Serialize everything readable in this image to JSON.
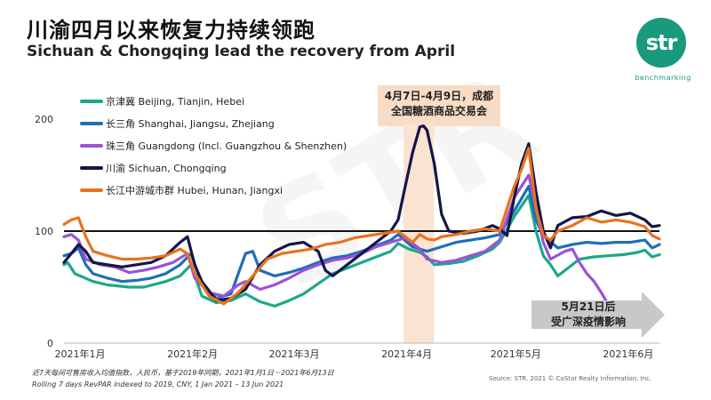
{
  "title_cn": "川渝四月以来恢复力持续领跑",
  "title_en": "Sichuan & Chongqing lead the recovery from April",
  "logo": {
    "text": "str",
    "subtext": "benchmarking",
    "color": "#1a9a7c"
  },
  "watermark": "STR",
  "annotation_canton_fair": "4月7日-4月9日，成都\n全国糖酒商品交易会",
  "annotation_outbreak": "5月21日后\n受广深疫情影响",
  "footnote_cn": "近7天每间可售房收入均值指数，人民币，基于2019年同期，2021年1月1日－2021年6月13日",
  "footnote_en": "Rolling 7 days RevPAR indexed to 2019, CNY, 1 Jan 2021 – 13 Jun 2021",
  "source": "Source: STR. 2021 © CoStar Realty Information, Inc.",
  "chart_data": {
    "type": "line",
    "title": "川渝四月以来恢复力持续领跑",
    "xlabel": "",
    "ylabel": "",
    "ylim": [
      0,
      210
    ],
    "yticks": [
      0,
      100,
      200
    ],
    "reference_line": 100,
    "x_range_days": [
      0,
      164
    ],
    "xtick_labels": [
      {
        "day": 0,
        "label": "2021年1月"
      },
      {
        "day": 31,
        "label": "2021年2月"
      },
      {
        "day": 59,
        "label": "2021年3月"
      },
      {
        "day": 90,
        "label": "2021年4月"
      },
      {
        "day": 120,
        "label": "2021年5月"
      },
      {
        "day": 151,
        "label": "2021年6月"
      }
    ],
    "highlight": {
      "day_start": 96,
      "day_end": 98.5,
      "label": "4月7日-4月9日，成都全国糖酒商品交易会"
    },
    "series": [
      {
        "name": "京津冀 Beijing, Tianjin, Hebei",
        "color": "#1aa98a",
        "points": [
          [
            0,
            70
          ],
          [
            1,
            72
          ],
          [
            3,
            62
          ],
          [
            8,
            55
          ],
          [
            12,
            52
          ],
          [
            18,
            50
          ],
          [
            22,
            50
          ],
          [
            28,
            55
          ],
          [
            32,
            60
          ],
          [
            35,
            70
          ],
          [
            38,
            42
          ],
          [
            42,
            36
          ],
          [
            46,
            38
          ],
          [
            50,
            44
          ],
          [
            54,
            37
          ],
          [
            58,
            33
          ],
          [
            62,
            38
          ],
          [
            66,
            44
          ],
          [
            70,
            53
          ],
          [
            74,
            62
          ],
          [
            78,
            67
          ],
          [
            82,
            72
          ],
          [
            86,
            77
          ],
          [
            90,
            82
          ],
          [
            92,
            89
          ],
          [
            95,
            84
          ],
          [
            98,
            81
          ],
          [
            100,
            77
          ],
          [
            102,
            70
          ],
          [
            106,
            71
          ],
          [
            110,
            73
          ],
          [
            114,
            78
          ],
          [
            118,
            84
          ],
          [
            120,
            90
          ],
          [
            124,
            113
          ],
          [
            128,
            132
          ],
          [
            130,
            100
          ],
          [
            132,
            78
          ],
          [
            134,
            70
          ],
          [
            136,
            60
          ],
          [
            138,
            65
          ],
          [
            142,
            75
          ],
          [
            146,
            77
          ],
          [
            150,
            78
          ],
          [
            154,
            79
          ],
          [
            158,
            81
          ],
          [
            160,
            83
          ],
          [
            162,
            77
          ],
          [
            164,
            79
          ]
        ]
      },
      {
        "name": "长三角 Shanghai, Jiangsu, Zhejiang",
        "color": "#1f6eb6",
        "points": [
          [
            0,
            78
          ],
          [
            2,
            80
          ],
          [
            4,
            85
          ],
          [
            6,
            70
          ],
          [
            8,
            62
          ],
          [
            12,
            58
          ],
          [
            16,
            55
          ],
          [
            20,
            56
          ],
          [
            24,
            58
          ],
          [
            28,
            62
          ],
          [
            32,
            70
          ],
          [
            35,
            80
          ],
          [
            38,
            52
          ],
          [
            42,
            40
          ],
          [
            46,
            44
          ],
          [
            50,
            80
          ],
          [
            52,
            82
          ],
          [
            54,
            65
          ],
          [
            58,
            60
          ],
          [
            62,
            63
          ],
          [
            66,
            67
          ],
          [
            70,
            72
          ],
          [
            74,
            76
          ],
          [
            78,
            78
          ],
          [
            82,
            82
          ],
          [
            86,
            87
          ],
          [
            90,
            92
          ],
          [
            92,
            97
          ],
          [
            96,
            86
          ],
          [
            100,
            82
          ],
          [
            104,
            86
          ],
          [
            108,
            90
          ],
          [
            112,
            92
          ],
          [
            116,
            94
          ],
          [
            120,
            97
          ],
          [
            124,
            118
          ],
          [
            128,
            140
          ],
          [
            130,
            110
          ],
          [
            132,
            96
          ],
          [
            136,
            85
          ],
          [
            140,
            88
          ],
          [
            144,
            90
          ],
          [
            148,
            89
          ],
          [
            152,
            90
          ],
          [
            156,
            90
          ],
          [
            160,
            92
          ],
          [
            162,
            85
          ],
          [
            164,
            88
          ]
        ]
      },
      {
        "name": "珠三角 Guangdong (Incl. Guangzhou & Shenzhen)",
        "color": "#9b52d8",
        "points": [
          [
            0,
            95
          ],
          [
            2,
            97
          ],
          [
            4,
            92
          ],
          [
            6,
            75
          ],
          [
            10,
            70
          ],
          [
            14,
            68
          ],
          [
            18,
            63
          ],
          [
            22,
            65
          ],
          [
            26,
            68
          ],
          [
            30,
            72
          ],
          [
            34,
            80
          ],
          [
            36,
            58
          ],
          [
            40,
            45
          ],
          [
            44,
            42
          ],
          [
            48,
            52
          ],
          [
            50,
            55
          ],
          [
            54,
            48
          ],
          [
            58,
            52
          ],
          [
            62,
            58
          ],
          [
            66,
            65
          ],
          [
            70,
            70
          ],
          [
            74,
            74
          ],
          [
            78,
            76
          ],
          [
            82,
            80
          ],
          [
            86,
            86
          ],
          [
            90,
            90
          ],
          [
            94,
            94
          ],
          [
            98,
            84
          ],
          [
            100,
            75
          ],
          [
            104,
            72
          ],
          [
            108,
            74
          ],
          [
            112,
            78
          ],
          [
            116,
            82
          ],
          [
            120,
            92
          ],
          [
            124,
            130
          ],
          [
            128,
            150
          ],
          [
            130,
            120
          ],
          [
            132,
            90
          ],
          [
            134,
            75
          ],
          [
            138,
            82
          ],
          [
            140,
            84
          ],
          [
            142,
            72
          ],
          [
            144,
            62
          ],
          [
            146,
            55
          ],
          [
            148,
            45
          ],
          [
            150,
            34
          ],
          [
            152,
            33
          ]
        ]
      },
      {
        "name": "川渝 Sichuan, Chongqing",
        "color": "#151549",
        "points": [
          [
            0,
            72
          ],
          [
            2,
            80
          ],
          [
            4,
            88
          ],
          [
            6,
            82
          ],
          [
            8,
            72
          ],
          [
            12,
            70
          ],
          [
            16,
            68
          ],
          [
            20,
            70
          ],
          [
            24,
            72
          ],
          [
            28,
            78
          ],
          [
            32,
            90
          ],
          [
            34,
            95
          ],
          [
            36,
            70
          ],
          [
            38,
            55
          ],
          [
            42,
            38
          ],
          [
            46,
            40
          ],
          [
            50,
            48
          ],
          [
            54,
            70
          ],
          [
            58,
            82
          ],
          [
            62,
            88
          ],
          [
            66,
            90
          ],
          [
            70,
            82
          ],
          [
            72,
            65
          ],
          [
            74,
            60
          ],
          [
            78,
            70
          ],
          [
            82,
            80
          ],
          [
            86,
            90
          ],
          [
            90,
            100
          ],
          [
            92,
            110
          ],
          [
            94,
            140
          ],
          [
            96,
            170
          ],
          [
            98,
            193
          ],
          [
            99,
            194
          ],
          [
            100,
            190
          ],
          [
            102,
            160
          ],
          [
            104,
            115
          ],
          [
            106,
            100
          ],
          [
            110,
            98
          ],
          [
            114,
            100
          ],
          [
            118,
            105
          ],
          [
            120,
            102
          ],
          [
            122,
            96
          ],
          [
            124,
            130
          ],
          [
            126,
            160
          ],
          [
            128,
            178
          ],
          [
            130,
            135
          ],
          [
            132,
            100
          ],
          [
            134,
            85
          ],
          [
            136,
            105
          ],
          [
            140,
            112
          ],
          [
            144,
            113
          ],
          [
            148,
            118
          ],
          [
            152,
            114
          ],
          [
            156,
            116
          ],
          [
            160,
            110
          ],
          [
            162,
            104
          ],
          [
            164,
            105
          ]
        ]
      },
      {
        "name": "长江中游城市群 Hubei, Hunan, Jiangxi",
        "color": "#e8731e",
        "points": [
          [
            0,
            106
          ],
          [
            2,
            110
          ],
          [
            4,
            112
          ],
          [
            6,
            95
          ],
          [
            8,
            82
          ],
          [
            12,
            78
          ],
          [
            16,
            75
          ],
          [
            20,
            75
          ],
          [
            24,
            76
          ],
          [
            28,
            78
          ],
          [
            32,
            84
          ],
          [
            34,
            80
          ],
          [
            36,
            62
          ],
          [
            40,
            42
          ],
          [
            44,
            35
          ],
          [
            48,
            45
          ],
          [
            52,
            60
          ],
          [
            56,
            75
          ],
          [
            60,
            80
          ],
          [
            64,
            82
          ],
          [
            68,
            84
          ],
          [
            72,
            88
          ],
          [
            76,
            90
          ],
          [
            80,
            94
          ],
          [
            84,
            96
          ],
          [
            88,
            98
          ],
          [
            92,
            100
          ],
          [
            94,
            95
          ],
          [
            96,
            90
          ],
          [
            98,
            97
          ],
          [
            100,
            93
          ],
          [
            102,
            92
          ],
          [
            104,
            95
          ],
          [
            108,
            97
          ],
          [
            112,
            100
          ],
          [
            116,
            102
          ],
          [
            120,
            100
          ],
          [
            124,
            140
          ],
          [
            126,
            155
          ],
          [
            128,
            174
          ],
          [
            130,
            120
          ],
          [
            132,
            96
          ],
          [
            134,
            92
          ],
          [
            136,
            100
          ],
          [
            140,
            105
          ],
          [
            144,
            112
          ],
          [
            148,
            108
          ],
          [
            152,
            110
          ],
          [
            156,
            108
          ],
          [
            160,
            104
          ],
          [
            162,
            96
          ],
          [
            164,
            93
          ]
        ]
      }
    ]
  }
}
